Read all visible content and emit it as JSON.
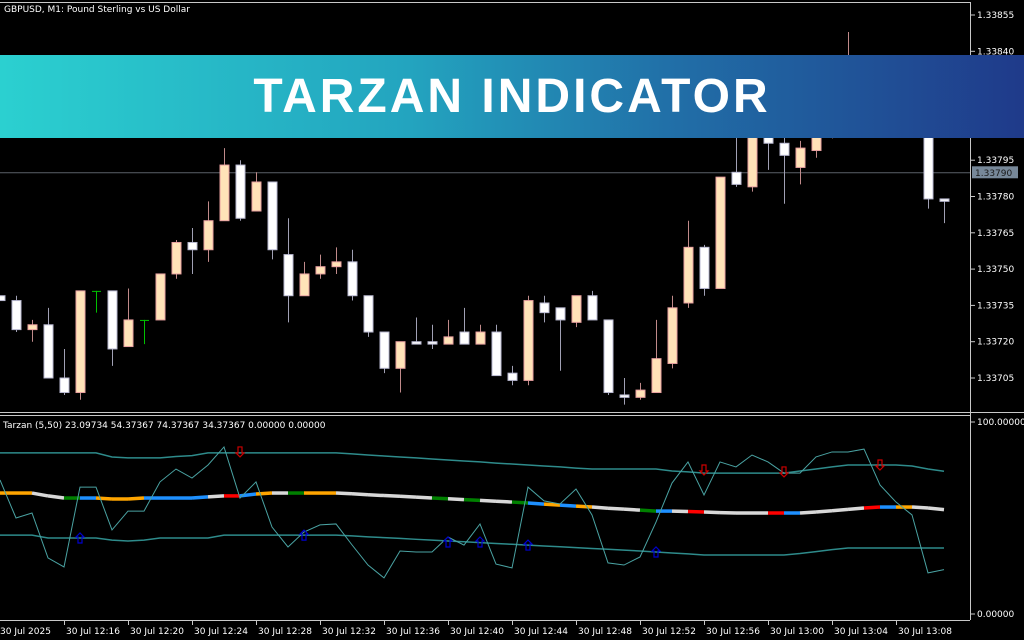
{
  "header": {
    "title": "GBPUSD, M1:  Pound Sterling vs US Dollar"
  },
  "banner": {
    "text": "TARZAN INDICATOR"
  },
  "indicator": {
    "label": "Tarzan (5,50) 23.09734 54.37367 74.37367 34.37367 0.00000 0.00000",
    "axis_top": "100.00000",
    "axis_bottom": "0.00000"
  },
  "colors": {
    "bull_fill": "#FFE3B8",
    "bull_edge": "#E8A0A0",
    "bear_fill": "#FFFFFF",
    "bear_edge": "#B8B8D0",
    "doji": "#00C000",
    "band": "#2E8B8B",
    "osc": "#4AA3A3",
    "arrow_up": "#0000CD",
    "arrow_down": "#CC0000",
    "price_line": "#5A6068",
    "price_box": "#778899"
  },
  "chart_data": [
    {
      "type": "candlestick",
      "title": "GBPUSD, M1:  Pound Sterling vs US Dollar",
      "ylim": [
        1.33688,
        1.33862
      ],
      "yticks": [
        "1.33855",
        "1.33840",
        "1.33795",
        "1.33780",
        "1.33765",
        "1.33750",
        "1.33735",
        "1.33720",
        "1.33705"
      ],
      "current_price": "1.33790",
      "xticks": [
        "30 Jul 2025",
        "30 Jul 12:16",
        "30 Jul 12:20",
        "30 Jul 12:24",
        "30 Jul 12:28",
        "30 Jul 12:32",
        "30 Jul 12:36",
        "30 Jul 12:40",
        "30 Jul 12:44",
        "30 Jul 12:48",
        "30 Jul 12:52",
        "30 Jul 12:56",
        "30 Jul 13:00",
        "30 Jul 13:04",
        "30 Jul 13:08"
      ],
      "ohlc": [
        [
          1.33739,
          1.33739,
          1.33737,
          1.33737
        ],
        [
          1.33737,
          1.33739,
          1.33724,
          1.33725
        ],
        [
          1.33725,
          1.33729,
          1.3372,
          1.33727
        ],
        [
          1.33727,
          1.33734,
          1.33705,
          1.33705
        ],
        [
          1.33705,
          1.33717,
          1.33698,
          1.33699
        ],
        [
          1.33699,
          1.33741,
          1.33696,
          1.33741
        ],
        [
          1.33741,
          1.33741,
          1.33732,
          1.33741
        ],
        [
          1.33741,
          1.33741,
          1.3371,
          1.33717
        ],
        [
          1.33718,
          1.33742,
          1.33718,
          1.33729
        ],
        [
          1.33729,
          1.33729,
          1.33719,
          1.33729
        ],
        [
          1.33729,
          1.33748,
          1.33729,
          1.33748
        ],
        [
          1.33748,
          1.33762,
          1.33746,
          1.33761
        ],
        [
          1.33761,
          1.33767,
          1.33748,
          1.33758
        ],
        [
          1.33758,
          1.33778,
          1.33753,
          1.3377
        ],
        [
          1.3377,
          1.338,
          1.3377,
          1.33793
        ],
        [
          1.33793,
          1.33795,
          1.3377,
          1.33771
        ],
        [
          1.33774,
          1.3379,
          1.33774,
          1.33786
        ],
        [
          1.33786,
          1.33786,
          1.33754,
          1.33758
        ],
        [
          1.33756,
          1.33771,
          1.33728,
          1.33739
        ],
        [
          1.33739,
          1.33753,
          1.33739,
          1.33748
        ],
        [
          1.33748,
          1.33756,
          1.33746,
          1.33751
        ],
        [
          1.33751,
          1.33759,
          1.33748,
          1.33753
        ],
        [
          1.33753,
          1.33758,
          1.33737,
          1.33739
        ],
        [
          1.33739,
          1.33739,
          1.33722,
          1.33724
        ],
        [
          1.33724,
          1.33724,
          1.33707,
          1.33709
        ],
        [
          1.33709,
          1.3372,
          1.33699,
          1.3372
        ],
        [
          1.3372,
          1.3373,
          1.33719,
          1.33719
        ],
        [
          1.3372,
          1.33727,
          1.33717,
          1.33719
        ],
        [
          1.33719,
          1.33729,
          1.33719,
          1.33722
        ],
        [
          1.33724,
          1.33734,
          1.33719,
          1.33719
        ],
        [
          1.33719,
          1.33727,
          1.33719,
          1.33724
        ],
        [
          1.33724,
          1.33727,
          1.33706,
          1.33706
        ],
        [
          1.33707,
          1.3371,
          1.33702,
          1.33704
        ],
        [
          1.33704,
          1.33739,
          1.33702,
          1.33737
        ],
        [
          1.33736,
          1.33739,
          1.33728,
          1.33732
        ],
        [
          1.33734,
          1.33734,
          1.33708,
          1.33729
        ],
        [
          1.33728,
          1.33739,
          1.33726,
          1.33739
        ],
        [
          1.33739,
          1.33741,
          1.33729,
          1.33729
        ],
        [
          1.33729,
          1.33729,
          1.33698,
          1.33699
        ],
        [
          1.33698,
          1.33705,
          1.33694,
          1.33697
        ],
        [
          1.33697,
          1.33703,
          1.33696,
          1.337
        ],
        [
          1.33699,
          1.33729,
          1.33699,
          1.33713
        ],
        [
          1.33711,
          1.33739,
          1.33709,
          1.33734
        ],
        [
          1.33736,
          1.3377,
          1.33734,
          1.33759
        ],
        [
          1.33759,
          1.3376,
          1.33739,
          1.33742
        ],
        [
          1.33742,
          1.33788,
          1.33742,
          1.33788
        ],
        [
          1.3379,
          1.3381,
          1.33784,
          1.33785
        ],
        [
          1.33784,
          1.3383,
          1.33782,
          1.3382
        ],
        [
          1.33815,
          1.33822,
          1.33791,
          1.33802
        ],
        [
          1.33802,
          1.33806,
          1.33777,
          1.33797
        ],
        [
          1.33792,
          1.33803,
          1.33785,
          1.338
        ],
        [
          1.33799,
          1.33812,
          1.33796,
          1.33808
        ],
        [
          1.33808,
          1.33825,
          1.33804,
          1.33822
        ],
        [
          1.33822,
          1.33848,
          1.33815,
          1.3383
        ],
        [
          1.3383,
          1.33835,
          1.33818,
          1.33825
        ],
        [
          1.33825,
          1.33832,
          1.33812,
          1.33815
        ],
        [
          1.33815,
          1.33826,
          1.33808,
          1.3382
        ],
        [
          1.3382,
          1.33828,
          1.3381,
          1.33812
        ],
        [
          1.33812,
          1.33818,
          1.33775,
          1.33779
        ],
        [
          1.33779,
          1.33779,
          1.33769,
          1.33778
        ]
      ]
    },
    {
      "type": "line",
      "title": "Tarzan (5,50)",
      "ylim": [
        0,
        100
      ],
      "series": [
        {
          "key": "oscillator",
          "values": [
            69.8,
            50,
            52.6,
            29.2,
            24.5,
            66.1,
            66.1,
            43.8,
            53.6,
            53.6,
            68.8,
            75.5,
            70.8,
            77.6,
            87,
            60.4,
            68.8,
            45.3,
            34.9,
            42.7,
            46.4,
            46.9,
            36,
            25.5,
            18.8,
            32.8,
            32.3,
            32.3,
            40.1,
            35.9,
            46.9,
            26,
            24,
            66.1,
            58.9,
            57.3,
            65.1,
            51.6,
            26.6,
            25.5,
            29.7,
            47.9,
            68.2,
            79.2,
            62,
            79.2,
            76.6,
            82.8,
            79.2,
            73.4,
            73.4,
            81.8,
            84.4,
            84.4,
            85.9,
            67.2,
            58.3,
            51.6,
            21.4,
            23.09734
          ]
        },
        {
          "key": "upper_band",
          "values": [
            83.9,
            83.9,
            83.9,
            83.9,
            83.9,
            83.9,
            83.9,
            81.8,
            81.3,
            81.3,
            81.3,
            82,
            82.5,
            83.9,
            83.9,
            83.9,
            83.9,
            83.9,
            83.9,
            83.9,
            83.9,
            83.9,
            83.4,
            82.8,
            82.3,
            81.8,
            81.3,
            80.7,
            80.2,
            79.7,
            79.2,
            78.6,
            78.1,
            77.6,
            77.1,
            76.6,
            76,
            75.5,
            75.5,
            75.5,
            75.5,
            75.5,
            74.5,
            74,
            73.4,
            73.4,
            73.4,
            73.4,
            73.4,
            73.4,
            74.5,
            75.5,
            76.6,
            77.6,
            77.6,
            77.6,
            77.6,
            77.1,
            75.5,
            74.37367
          ]
        },
        {
          "key": "middle",
          "values": [
            63,
            63,
            63,
            61.5,
            60.4,
            60.4,
            60.4,
            59.9,
            59.9,
            60.4,
            60.4,
            60.4,
            60.4,
            61,
            61.5,
            61.5,
            62.5,
            63,
            63,
            63,
            63,
            63,
            62.6,
            62.1,
            61.7,
            61.3,
            60.9,
            60.4,
            60,
            59.6,
            59.2,
            58.7,
            58.3,
            57.8,
            57.2,
            56.7,
            56.2,
            55.7,
            55.1,
            54.6,
            54.1,
            53.6,
            53.6,
            53.4,
            53.1,
            52.8,
            52.6,
            52.6,
            52.6,
            52.6,
            52.6,
            53.1,
            53.8,
            54.5,
            55.2,
            55.7,
            55.7,
            55.7,
            55.2,
            54.37367
          ]
        },
        {
          "key": "lower_band",
          "values": [
            41.1,
            41.1,
            41.1,
            39.6,
            39.6,
            39.6,
            39.6,
            38.5,
            38,
            38.5,
            39.6,
            39.6,
            39.6,
            39.6,
            41.1,
            41.1,
            41.1,
            41.1,
            41.1,
            41.1,
            41.1,
            41.1,
            40.7,
            40.2,
            39.8,
            39.4,
            38.9,
            38.5,
            38,
            37.6,
            37.2,
            36.7,
            36.3,
            35.9,
            35.4,
            35,
            34.6,
            34.1,
            33.7,
            33.3,
            32.8,
            32.3,
            31.8,
            31.3,
            30.7,
            30.7,
            30.7,
            30.7,
            30.7,
            30.7,
            31.5,
            32.5,
            33.5,
            34.4,
            34.4,
            34.4,
            34.4,
            34.4,
            34.4,
            34.37367
          ]
        }
      ],
      "middle_segment_colors": [
        "orange",
        "orange",
        "white",
        "white",
        "green",
        "blue",
        "orange",
        "orange",
        "orange",
        "blue",
        "blue",
        "blue",
        "blue",
        "white",
        "red",
        "blue",
        "orange",
        "white",
        "green",
        "orange",
        "orange",
        "white",
        "white",
        "white",
        "white",
        "white",
        "white",
        "green",
        "white",
        "green",
        "white",
        "white",
        "green",
        "blue",
        "orange",
        "blue",
        "orange",
        "white",
        "white",
        "white",
        "green",
        "blue",
        "white",
        "red",
        "white",
        "white",
        "white",
        "white",
        "red",
        "blue",
        "white",
        "white",
        "white",
        "white",
        "red",
        "blue",
        "orange",
        "white",
        "white"
      ],
      "segment_palette": {
        "orange": "#FFA500",
        "white": "#D8D8D8",
        "green": "#008000",
        "blue": "#1E90FF",
        "red": "#FF0000"
      },
      "arrows": [
        {
          "bar": 15,
          "dir": "down",
          "value": 84.4
        },
        {
          "bar": 44,
          "dir": "down",
          "value": 75
        },
        {
          "bar": 49,
          "dir": "down",
          "value": 74
        },
        {
          "bar": 55,
          "dir": "down",
          "value": 77.6
        },
        {
          "bar": 5,
          "dir": "up",
          "value": 39.6
        },
        {
          "bar": 19,
          "dir": "up",
          "value": 41.1
        },
        {
          "bar": 28,
          "dir": "up",
          "value": 37.5
        },
        {
          "bar": 30,
          "dir": "up",
          "value": 37.5
        },
        {
          "bar": 33,
          "dir": "up",
          "value": 35.9
        },
        {
          "bar": 41,
          "dir": "up",
          "value": 32.3
        }
      ]
    }
  ]
}
